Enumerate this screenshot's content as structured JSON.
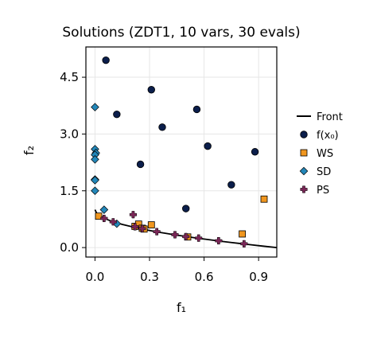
{
  "chart_data": {
    "type": "scatter",
    "title": "Solutions (ZDT1, 10 vars, 30 evals)",
    "xlabel": "f₁",
    "ylabel": "f₂",
    "xlim": [
      -0.05,
      1.0
    ],
    "ylim": [
      -0.25,
      5.3
    ],
    "xticks": [
      {
        "value": 0.0,
        "label": "0.0"
      },
      {
        "value": 0.3,
        "label": "0.3"
      },
      {
        "value": 0.6,
        "label": "0.6"
      },
      {
        "value": 0.9,
        "label": "0.9"
      }
    ],
    "yticks": [
      {
        "value": 0.0,
        "label": "0.0"
      },
      {
        "value": 1.5,
        "label": "1.5"
      },
      {
        "value": 3.0,
        "label": "3.0"
      },
      {
        "value": 4.5,
        "label": "4.5"
      }
    ],
    "grid": true,
    "legend_position": "right",
    "series": [
      {
        "name": "Front",
        "kind": "line",
        "color": "#000000",
        "points": [
          [
            0.0,
            1.0
          ],
          [
            0.01,
            0.9
          ],
          [
            0.03,
            0.827
          ],
          [
            0.05,
            0.776
          ],
          [
            0.075,
            0.726
          ],
          [
            0.1,
            0.684
          ],
          [
            0.15,
            0.613
          ],
          [
            0.2,
            0.553
          ],
          [
            0.25,
            0.5
          ],
          [
            0.3,
            0.452
          ],
          [
            0.35,
            0.408
          ],
          [
            0.4,
            0.368
          ],
          [
            0.45,
            0.329
          ],
          [
            0.5,
            0.293
          ],
          [
            0.55,
            0.258
          ],
          [
            0.6,
            0.225
          ],
          [
            0.65,
            0.194
          ],
          [
            0.7,
            0.163
          ],
          [
            0.75,
            0.134
          ],
          [
            0.8,
            0.106
          ],
          [
            0.85,
            0.078
          ],
          [
            0.9,
            0.051
          ],
          [
            0.95,
            0.025
          ],
          [
            1.0,
            0.0
          ]
        ]
      },
      {
        "name": "f(x₀)",
        "kind": "circle",
        "color": "#0b1e4b",
        "points": [
          [
            0.06,
            4.95
          ],
          [
            0.31,
            4.17
          ],
          [
            0.12,
            3.52
          ],
          [
            0.56,
            3.65
          ],
          [
            0.37,
            3.18
          ],
          [
            0.62,
            2.68
          ],
          [
            0.88,
            2.53
          ],
          [
            0.25,
            2.2
          ],
          [
            0.75,
            1.66
          ],
          [
            0.5,
            1.03
          ]
        ]
      },
      {
        "name": "WS",
        "kind": "square",
        "color": "#f0961e",
        "points": [
          [
            0.02,
            0.83
          ],
          [
            0.22,
            0.56
          ],
          [
            0.24,
            0.62
          ],
          [
            0.26,
            0.51
          ],
          [
            0.27,
            0.49
          ],
          [
            0.31,
            0.6
          ],
          [
            0.51,
            0.28
          ],
          [
            0.81,
            0.36
          ],
          [
            0.93,
            1.28
          ]
        ]
      },
      {
        "name": "SD",
        "kind": "diamond",
        "color": "#2387b9",
        "points": [
          [
            0.0,
            3.71
          ],
          [
            0.0,
            2.6
          ],
          [
            0.005,
            2.5
          ],
          [
            0.0,
            2.45
          ],
          [
            0.0,
            2.33
          ],
          [
            0.0,
            1.8
          ],
          [
            0.0,
            1.78
          ],
          [
            0.0,
            1.5
          ],
          [
            0.05,
            1.0
          ],
          [
            0.12,
            0.63
          ]
        ]
      },
      {
        "name": "PS",
        "kind": "cross",
        "color": "#7a2657",
        "points": [
          [
            0.21,
            0.87
          ],
          [
            0.05,
            0.77
          ],
          [
            0.1,
            0.68
          ],
          [
            0.22,
            0.55
          ],
          [
            0.26,
            0.5
          ],
          [
            0.34,
            0.42
          ],
          [
            0.44,
            0.34
          ],
          [
            0.5,
            0.29
          ],
          [
            0.57,
            0.25
          ],
          [
            0.68,
            0.18
          ],
          [
            0.82,
            0.1
          ]
        ]
      }
    ]
  }
}
